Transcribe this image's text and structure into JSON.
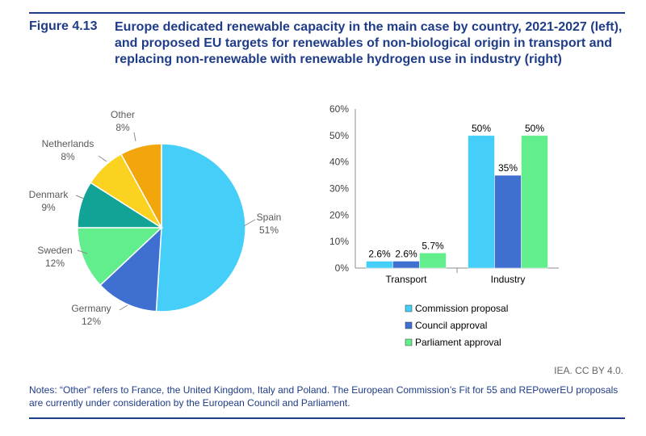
{
  "figure": {
    "label": "Figure 4.13",
    "title": "Europe dedicated renewable capacity in the main case by country, 2021-2027 (left), and proposed EU targets for renewables of non-biological origin in transport and replacing non-renewable with renewable hydrogen use in industry (right)",
    "credit": "IEA. CC BY 4.0.",
    "notes": "Notes: “Other” refers to France, the United Kingdom, Italy and Poland. The European Commission’s Fit for 55 and REPowerEU proposals are currently under consideration by the European Council and Parliament."
  },
  "colors": {
    "accent": "#1f3c88",
    "spain": "#45cff8",
    "germany": "#3e6fd1",
    "sweden": "#63ee8e",
    "denmark": "#12a397",
    "netherlands": "#fbd21f",
    "other": "#f2a60b",
    "commission": "#45cff8",
    "council": "#3e6fd1",
    "parliament": "#63ee8e"
  },
  "chart_data": [
    {
      "type": "pie",
      "labels": [
        "Spain",
        "Germany",
        "Sweden",
        "Denmark",
        "Netherlands",
        "Other"
      ],
      "values": [
        51,
        12,
        12,
        9,
        8,
        8
      ],
      "value_labels": [
        "51%",
        "12%",
        "12%",
        "9%",
        "8%",
        "8%"
      ],
      "colors": [
        "#45cff8",
        "#3e6fd1",
        "#63ee8e",
        "#12a397",
        "#fbd21f",
        "#f2a60b"
      ]
    },
    {
      "type": "bar",
      "categories": [
        "Transport",
        "Industry"
      ],
      "series": [
        {
          "name": "Commission proposal",
          "values": [
            2.6,
            50
          ],
          "labels": [
            "2.6%",
            "50%"
          ],
          "color": "#45cff8"
        },
        {
          "name": "Council approval",
          "values": [
            2.6,
            35
          ],
          "labels": [
            "2.6%",
            "35%"
          ],
          "color": "#3e6fd1"
        },
        {
          "name": "Parliament approval",
          "values": [
            5.7,
            50
          ],
          "labels": [
            "5.7%",
            "50%"
          ],
          "color": "#63ee8e"
        }
      ],
      "ylim": [
        0,
        60
      ],
      "yticks": [
        "0%",
        "10%",
        "20%",
        "30%",
        "40%",
        "50%",
        "60%"
      ],
      "legend_position": "bottom"
    }
  ]
}
